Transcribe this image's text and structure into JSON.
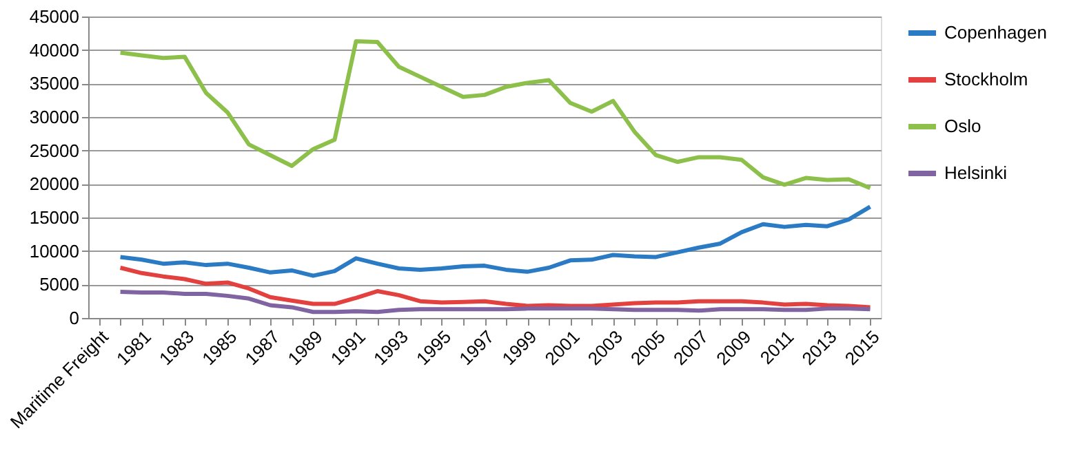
{
  "chart_data": {
    "type": "line",
    "categories": [
      "Maritime Freight",
      null,
      "1981",
      null,
      "1983",
      null,
      "1985",
      null,
      "1987",
      null,
      "1989",
      null,
      "1991",
      null,
      "1993",
      null,
      "1995",
      null,
      "1997",
      null,
      "1999",
      null,
      "2001",
      null,
      "2003",
      null,
      "2005",
      null,
      "2007",
      null,
      "2009",
      null,
      "2011",
      null,
      "2013",
      null,
      "2015"
    ],
    "series": [
      {
        "name": "Copenhagen",
        "color": "#2a7bc4",
        "values": [
          null,
          9100,
          8700,
          8100,
          8300,
          7900,
          8100,
          7500,
          6800,
          7100,
          6300,
          7000,
          8900,
          8100,
          7400,
          7200,
          7400,
          7700,
          7800,
          7200,
          6900,
          7500,
          8600,
          8700,
          9400,
          9200,
          9100,
          9800,
          10500,
          11100,
          12800,
          14000,
          13600,
          13900,
          13700,
          14700,
          16600
        ]
      },
      {
        "name": "Stockholm",
        "color": "#e2413f",
        "values": [
          null,
          7500,
          6700,
          6200,
          5800,
          5100,
          5300,
          4400,
          3100,
          2600,
          2100,
          2100,
          3000,
          4000,
          3400,
          2500,
          2300,
          2400,
          2500,
          2100,
          1800,
          1900,
          1800,
          1800,
          2000,
          2200,
          2300,
          2300,
          2500,
          2500,
          2500,
          2300,
          2000,
          2100,
          1900,
          1800,
          1600
        ]
      },
      {
        "name": "Oslo",
        "color": "#8cc04b",
        "values": [
          null,
          39600,
          39200,
          38800,
          39000,
          33600,
          30700,
          25900,
          24300,
          22700,
          25200,
          26600,
          41300,
          41200,
          37500,
          36000,
          34500,
          33000,
          33300,
          34500,
          35100,
          35500,
          32100,
          30800,
          32400,
          27800,
          24300,
          23300,
          24000,
          24000,
          23600,
          21000,
          19900,
          20900,
          20600,
          20700,
          19400
        ]
      },
      {
        "name": "Helsinki",
        "color": "#8064a2",
        "values": [
          null,
          3900,
          3800,
          3800,
          3600,
          3600,
          3300,
          2900,
          1900,
          1600,
          900,
          900,
          1000,
          900,
          1200,
          1300,
          1300,
          1300,
          1300,
          1300,
          1400,
          1400,
          1400,
          1400,
          1300,
          1200,
          1200,
          1200,
          1100,
          1300,
          1300,
          1300,
          1200,
          1200,
          1400,
          1400,
          1300
        ]
      }
    ],
    "ylim": [
      0,
      45000
    ],
    "yticks": [
      0,
      5000,
      10000,
      15000,
      20000,
      25000,
      30000,
      35000,
      40000,
      45000
    ],
    "grid": "y",
    "legend": "right"
  }
}
